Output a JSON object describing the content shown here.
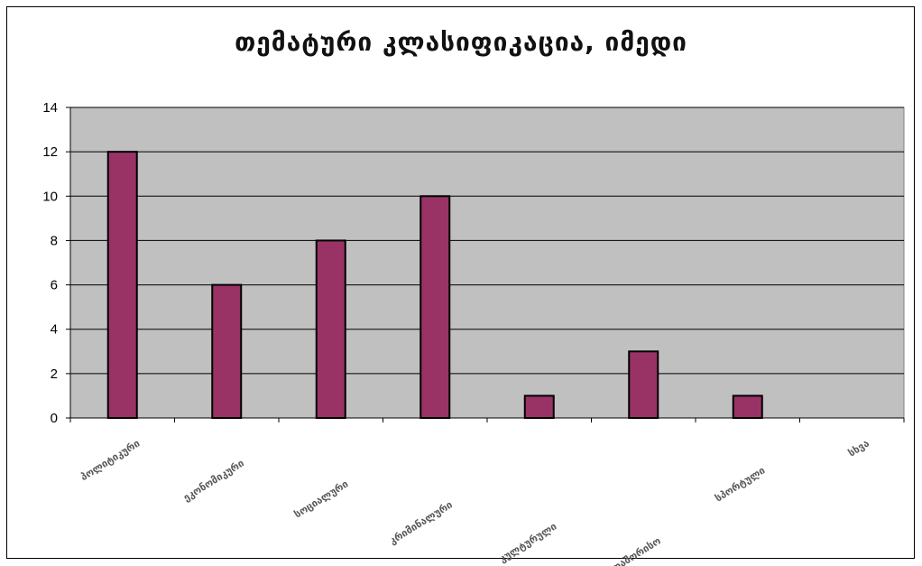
{
  "chart_data": {
    "type": "bar",
    "title": "თემატური კლასიფიკაცია, იმედი",
    "categories": [
      "პოლიტიკური",
      "ეკონომიკური",
      "სოციალური",
      "კრიმინალური",
      "კულტურული",
      "საერთაშორისო",
      "სპორტული",
      "სხვა"
    ],
    "values": [
      12,
      6,
      8,
      10,
      1,
      3,
      1,
      0
    ],
    "ylim": [
      0,
      14
    ],
    "yticks": [
      0,
      2,
      4,
      6,
      8,
      10,
      12,
      14
    ],
    "xlabel": "",
    "ylabel": "",
    "grid": true,
    "legend": false
  },
  "colors": {
    "bar": "#993366",
    "bar_border": "#000000",
    "plot_background": "#c0c0c0",
    "gridline": "#000000"
  }
}
